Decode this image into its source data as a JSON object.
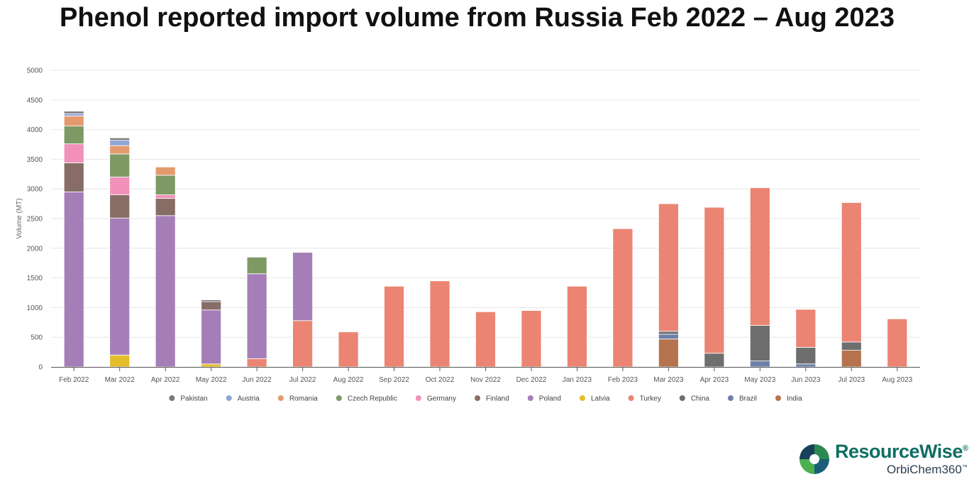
{
  "title": "Phenol reported import volume from Russia Feb 2022 – Aug 2023",
  "logo": {
    "name": "ResourceWise",
    "registered": "®",
    "sub": "OrbiChem360",
    "tm": "™"
  },
  "chart_data": {
    "type": "bar",
    "stacked": true,
    "title": "Phenol reported import volume from Russia Feb 2022 – Aug 2023",
    "ylabel": "Volume (MT)",
    "xlabel": "",
    "ylim": [
      0,
      5000
    ],
    "yticks": [
      0,
      500,
      1000,
      1500,
      2000,
      2500,
      3000,
      3500,
      4000,
      4500,
      5000
    ],
    "grid": true,
    "legend_position": "bottom",
    "categories": [
      "Feb 2022",
      "Mar 2022",
      "Apr 2022",
      "May 2022",
      "Jun 2022",
      "Jul 2022",
      "Aug 2022",
      "Sep 2022",
      "Oct 2022",
      "Nov 2022",
      "Dec 2022",
      "Jan 2023",
      "Feb 2023",
      "Mar 2023",
      "Apr 2023",
      "May 2023",
      "Jun 2023",
      "Jul 2023",
      "Aug 2023"
    ],
    "series": [
      {
        "name": "India",
        "color": "#b5744e",
        "values": [
          0,
          0,
          0,
          0,
          0,
          0,
          0,
          0,
          0,
          0,
          0,
          0,
          0,
          470,
          0,
          0,
          0,
          280,
          0
        ]
      },
      {
        "name": "Brazil",
        "color": "#6b80a8",
        "values": [
          0,
          0,
          0,
          0,
          0,
          0,
          0,
          0,
          0,
          0,
          0,
          0,
          0,
          80,
          0,
          100,
          50,
          0,
          0
        ]
      },
      {
        "name": "China",
        "color": "#6e6e6e",
        "values": [
          0,
          0,
          0,
          0,
          0,
          0,
          0,
          0,
          0,
          0,
          0,
          0,
          0,
          50,
          230,
          600,
          280,
          140,
          0
        ]
      },
      {
        "name": "Latvia",
        "color": "#e3bd2a",
        "values": [
          0,
          200,
          0,
          50,
          0,
          0,
          0,
          0,
          0,
          0,
          0,
          0,
          0,
          0,
          0,
          0,
          0,
          0,
          0
        ]
      },
      {
        "name": "Turkey",
        "color": "#ec8473",
        "values": [
          0,
          0,
          0,
          0,
          140,
          780,
          590,
          1360,
          1450,
          930,
          950,
          1360,
          2330,
          2150,
          2460,
          2320,
          640,
          2350,
          810
        ]
      },
      {
        "name": "Poland",
        "color": "#a57eb8",
        "values": [
          2950,
          2310,
          2550,
          910,
          1430,
          1150,
          0,
          0,
          0,
          0,
          0,
          0,
          0,
          0,
          0,
          0,
          0,
          0,
          0
        ]
      },
      {
        "name": "Finland",
        "color": "#876d66",
        "values": [
          490,
          390,
          290,
          140,
          0,
          0,
          0,
          0,
          0,
          0,
          0,
          0,
          0,
          0,
          0,
          0,
          0,
          0,
          0
        ]
      },
      {
        "name": "Germany",
        "color": "#f291ba",
        "values": [
          320,
          300,
          60,
          0,
          0,
          0,
          0,
          0,
          0,
          0,
          0,
          0,
          0,
          0,
          0,
          0,
          0,
          0,
          0
        ]
      },
      {
        "name": "Czech Republic",
        "color": "#7f9964",
        "values": [
          300,
          390,
          330,
          0,
          280,
          0,
          0,
          0,
          0,
          0,
          0,
          0,
          0,
          0,
          0,
          0,
          0,
          0,
          0
        ]
      },
      {
        "name": "Romania",
        "color": "#e59a6e",
        "values": [
          170,
          140,
          140,
          0,
          0,
          0,
          0,
          0,
          0,
          0,
          0,
          0,
          0,
          0,
          0,
          0,
          0,
          0,
          0
        ]
      },
      {
        "name": "Austria",
        "color": "#8fa5d6",
        "values": [
          40,
          90,
          0,
          0,
          0,
          0,
          0,
          0,
          0,
          0,
          0,
          0,
          0,
          0,
          0,
          0,
          0,
          0,
          0
        ]
      },
      {
        "name": "Pakistan",
        "color": "#7b7b7b",
        "values": [
          40,
          40,
          0,
          30,
          0,
          0,
          0,
          0,
          0,
          0,
          0,
          0,
          0,
          0,
          0,
          0,
          0,
          0,
          0
        ]
      }
    ],
    "legend_order": [
      "Pakistan",
      "Austria",
      "Romania",
      "Czech Republic",
      "Germany",
      "Finland",
      "Poland",
      "Latvia",
      "Turkey",
      "China",
      "Brazil",
      "India"
    ]
  }
}
